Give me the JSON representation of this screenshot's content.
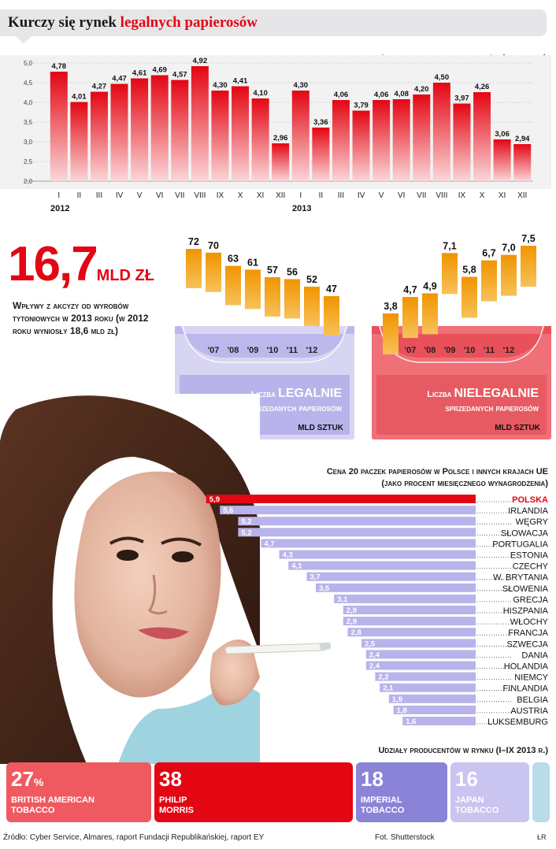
{
  "header": {
    "title_part1": "Kurczy się rynek ",
    "title_part2": "legalnych papierosów"
  },
  "headline": {
    "value": "16,7",
    "unit": "MLD ZŁ",
    "description": "Wpływy z akcyzy od wyrobów tytoniowych w 2013 roku (w 2012 roku wyniosły 18,6 mld zł)"
  },
  "colors": {
    "red": "#e30613",
    "orange": "#f39200",
    "lavender": "#b8b3ea",
    "light_lavender": "#d7d4f3",
    "gray_box": "#e6e6e8"
  },
  "chart_data": [
    {
      "type": "bar",
      "title": "Legalna sprzedaż papierosów (mld sztuk)",
      "categories": [
        "I",
        "II",
        "III",
        "IV",
        "V",
        "VI",
        "VII",
        "VIII",
        "IX",
        "X",
        "XI",
        "XII",
        "I",
        "II",
        "III",
        "IV",
        "V",
        "VI",
        "VII",
        "VIII",
        "IX",
        "X",
        "XI",
        "XII"
      ],
      "year_labels": [
        "2012",
        "2013"
      ],
      "values": [
        4.78,
        4.01,
        4.27,
        4.47,
        4.61,
        4.69,
        4.57,
        4.92,
        4.3,
        4.41,
        4.1,
        2.96,
        4.3,
        3.36,
        4.06,
        3.79,
        4.06,
        4.08,
        4.2,
        4.5,
        3.97,
        4.26,
        3.06,
        2.94
      ],
      "value_labels": [
        "4,78",
        "4,01",
        "4,27",
        "4,47",
        "4,61",
        "4,69",
        "4,57",
        "4,92",
        "4,30",
        "4,41",
        "4,10",
        "2,96",
        "4,30",
        "3,36",
        "4,06",
        "3,79",
        "4,06",
        "4,08",
        "4,20",
        "4,50",
        "3,97",
        "4,26",
        "3,06",
        "2,94"
      ],
      "ylim": [
        2.0,
        5.0
      ],
      "yticks": [
        "2,0",
        "2,5",
        "3,0",
        "3,5",
        "4,0",
        "4,5",
        "5,0"
      ],
      "grid": true
    },
    {
      "type": "bar",
      "title": "Liczba legalnie sprzedanych papierosów",
      "title_part1": "Liczba ",
      "title_part2": "LEGALNIE",
      "title_part3": "sprzedanych papierosów",
      "unit": "MLD SZTUK",
      "values": [
        72,
        70,
        63,
        61,
        57,
        56,
        52,
        47
      ],
      "value_labels": [
        "72",
        "70",
        "63",
        "61",
        "57",
        "56",
        "52",
        "47"
      ],
      "categories": [
        "",
        "'07",
        "'08",
        "'09",
        "'10",
        "'11",
        "'12",
        ""
      ]
    },
    {
      "type": "bar",
      "title": "Liczba nielegalnie sprzedanych papierosów",
      "title_part1": "Liczba ",
      "title_part2": "NIELEGALNIE",
      "title_part3": "sprzedanych papierosów",
      "unit": "MLD SZTUK",
      "values": [
        3.8,
        4.7,
        4.9,
        7.1,
        5.8,
        6.7,
        7.0,
        7.5
      ],
      "value_labels": [
        "3,8",
        "4,7",
        "4,9",
        "7,1",
        "5,8",
        "6,7",
        "7,0",
        "7,5"
      ],
      "categories": [
        "",
        "'07",
        "'08",
        "'09",
        "'10",
        "'11",
        "'12",
        ""
      ]
    },
    {
      "type": "bar",
      "orientation": "horizontal",
      "title_line1": "Cena 20 paczek papierosów w Polsce i innych krajach UE",
      "title_line2": "(jako procent miesięcznego wynagrodzenia)",
      "categories": [
        "POLSKA",
        "IRLANDIA",
        "WĘGRY",
        "SŁOWACJA",
        "PORTUGALIA",
        "ESTONIA",
        "CZECHY",
        "W. BRYTANIA",
        "SŁOWENIA",
        "GRECJA",
        "HISZPANIA",
        "WŁOCHY",
        "FRANCJA",
        "SZWECJA",
        "DANIA",
        "HOLANDIA",
        "NIEMCY",
        "FINLANDIA",
        "BELGIA",
        "AUSTRIA",
        "LUKSEMBURG"
      ],
      "values": [
        5.9,
        5.6,
        5.2,
        5.2,
        4.7,
        4.3,
        4.1,
        3.7,
        3.5,
        3.1,
        2.9,
        2.9,
        2.8,
        2.5,
        2.4,
        2.4,
        2.2,
        2.1,
        1.9,
        1.8,
        1.6
      ],
      "value_labels": [
        "5,9",
        "5,6",
        "5,2",
        "5,2",
        "4,7",
        "4,3",
        "4,1",
        "3,7",
        "3,5",
        "3,1",
        "2,9",
        "2,9",
        "2,8",
        "2,5",
        "2,4",
        "2,4",
        "2,2",
        "2,1",
        "1,9",
        "1,8",
        "1,6"
      ]
    },
    {
      "type": "bar",
      "title": "Udziały producentów w rynku (I–IX 2013 r.)",
      "categories": [
        "BRITISH AMERICAN TOBACCO",
        "PHILIP MORRIS",
        "IMPERIAL TOBACCO",
        "JAPAN TOBACCO"
      ],
      "values": [
        27,
        38,
        18,
        16
      ],
      "value_labels": [
        "27",
        "38",
        "18",
        "16"
      ],
      "percent_sign": "%"
    }
  ],
  "shares": [
    {
      "value": "27",
      "suffix": "%",
      "name_line1": "BRITISH AMERICAN",
      "name_line2": "TOBACCO"
    },
    {
      "value": "38",
      "suffix": "",
      "name_line1": "PHILIP",
      "name_line2": "MORRIS"
    },
    {
      "value": "18",
      "suffix": "",
      "name_line1": "IMPERIAL",
      "name_line2": "TOBACCO"
    },
    {
      "value": "16",
      "suffix": "",
      "name_line1": "JAPAN",
      "name_line2": "TOBACCO"
    }
  ],
  "footer": {
    "source": "Źródło: Cyber Service, Almares, raport Fundacji Republikańskiej, raport EY",
    "photo": "Fot. Shutterstock",
    "signature": "ŁR"
  }
}
